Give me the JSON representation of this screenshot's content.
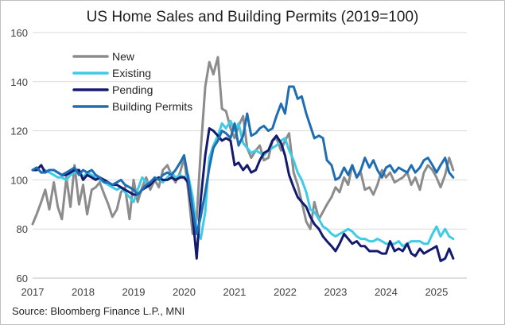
{
  "title": "US Home Sales and Building Permits (2019=100)",
  "source": "Source: Bloomberg Finance L.P., MNI",
  "chart_data": {
    "type": "line",
    "title": "US Home Sales and Building Permits (2019=100)",
    "xlabel": "",
    "ylabel": "",
    "xlim": [
      2017.0,
      2025.6
    ],
    "ylim": [
      60,
      160
    ],
    "yticks": [
      60,
      80,
      100,
      120,
      140,
      160
    ],
    "xticks": [
      "2017",
      "2018",
      "2019",
      "2020",
      "2021",
      "2022",
      "2023",
      "2024",
      "2025"
    ],
    "grid": true,
    "legend_position": "top-left",
    "series": [
      {
        "name": "New",
        "color": "#8c8c8c",
        "x": [
          2017.0,
          2017.08,
          2017.17,
          2017.25,
          2017.33,
          2017.42,
          2017.5,
          2017.58,
          2017.67,
          2017.75,
          2017.83,
          2017.92,
          2018.0,
          2018.08,
          2018.17,
          2018.25,
          2018.33,
          2018.42,
          2018.5,
          2018.58,
          2018.67,
          2018.75,
          2018.83,
          2018.92,
          2019.0,
          2019.08,
          2019.17,
          2019.25,
          2019.33,
          2019.42,
          2019.5,
          2019.58,
          2019.67,
          2019.75,
          2019.83,
          2019.92,
          2020.0,
          2020.08,
          2020.17,
          2020.25,
          2020.33,
          2020.42,
          2020.5,
          2020.58,
          2020.67,
          2020.75,
          2020.83,
          2020.92,
          2021.0,
          2021.08,
          2021.17,
          2021.25,
          2021.33,
          2021.42,
          2021.5,
          2021.58,
          2021.67,
          2021.75,
          2021.83,
          2021.92,
          2022.0,
          2022.08,
          2022.17,
          2022.25,
          2022.33,
          2022.42,
          2022.5,
          2022.58,
          2022.67,
          2022.75,
          2022.83,
          2022.92,
          2023.0,
          2023.08,
          2023.17,
          2023.25,
          2023.33,
          2023.42,
          2023.5,
          2023.58,
          2023.67,
          2023.75,
          2023.83,
          2023.92,
          2024.0,
          2024.08,
          2024.17,
          2024.25,
          2024.33,
          2024.42,
          2024.5,
          2024.58,
          2024.67,
          2024.75,
          2024.83,
          2024.92,
          2025.0,
          2025.08,
          2025.17,
          2025.25,
          2025.33
        ],
        "values": [
          82,
          86,
          91,
          96,
          88,
          99,
          89,
          84,
          101,
          89,
          106,
          90,
          98,
          86,
          96,
          97,
          99,
          94,
          90,
          85,
          88,
          95,
          97,
          84,
          100,
          91,
          97,
          101,
          96,
          100,
          97,
          104,
          106,
          102,
          99,
          103,
          109,
          96,
          78,
          84,
          112,
          138,
          148,
          143,
          150,
          129,
          128,
          121,
          117,
          122,
          126,
          113,
          109,
          112,
          114,
          108,
          109,
          116,
          117,
          112,
          116,
          119,
          103,
          98,
          91,
          83,
          80,
          91,
          84,
          87,
          90,
          93,
          97,
          95,
          101,
          98,
          106,
          101,
          103,
          96,
          97,
          94,
          98,
          104,
          101,
          103,
          99,
          100,
          101,
          103,
          98,
          101,
          96,
          103,
          106,
          104,
          101,
          97,
          102,
          109,
          104
        ],
        "color_line": "#8c8c8c"
      },
      {
        "name": "Existing",
        "color": "#3fcbe6",
        "x": [
          2017.0,
          2017.08,
          2017.17,
          2017.25,
          2017.33,
          2017.42,
          2017.5,
          2017.58,
          2017.67,
          2017.75,
          2017.83,
          2017.92,
          2018.0,
          2018.08,
          2018.17,
          2018.25,
          2018.33,
          2018.42,
          2018.5,
          2018.58,
          2018.67,
          2018.75,
          2018.83,
          2018.92,
          2019.0,
          2019.08,
          2019.17,
          2019.25,
          2019.33,
          2019.42,
          2019.5,
          2019.58,
          2019.67,
          2019.75,
          2019.83,
          2019.92,
          2020.0,
          2020.08,
          2020.17,
          2020.25,
          2020.33,
          2020.42,
          2020.5,
          2020.58,
          2020.67,
          2020.75,
          2020.83,
          2020.92,
          2021.0,
          2021.08,
          2021.17,
          2021.25,
          2021.33,
          2021.42,
          2021.5,
          2021.58,
          2021.67,
          2021.75,
          2021.83,
          2021.92,
          2022.0,
          2022.08,
          2022.17,
          2022.25,
          2022.33,
          2022.42,
          2022.5,
          2022.58,
          2022.67,
          2022.75,
          2022.83,
          2022.92,
          2023.0,
          2023.08,
          2023.17,
          2023.25,
          2023.33,
          2023.42,
          2023.5,
          2023.58,
          2023.67,
          2023.75,
          2023.83,
          2023.92,
          2024.0,
          2024.08,
          2024.17,
          2024.25,
          2024.33,
          2024.42,
          2024.5,
          2024.58,
          2024.67,
          2024.75,
          2024.83,
          2024.92,
          2025.0,
          2025.08,
          2025.17,
          2025.25,
          2025.33
        ],
        "values": [
          104,
          105,
          103,
          104,
          103,
          102,
          101,
          101,
          100,
          102,
          103,
          104,
          101,
          103,
          102,
          101,
          100,
          99,
          98,
          97,
          96,
          97,
          95,
          93,
          91,
          96,
          101,
          99,
          99,
          100,
          101,
          99,
          101,
          103,
          101,
          102,
          101,
          102,
          93,
          80,
          76,
          87,
          109,
          114,
          118,
          123,
          121,
          124,
          120,
          123,
          115,
          113,
          111,
          112,
          111,
          110,
          112,
          113,
          114,
          116,
          117,
          112,
          108,
          103,
          100,
          95,
          88,
          87,
          84,
          81,
          80,
          78,
          77,
          78,
          79,
          80,
          79,
          77,
          76,
          76,
          75,
          75,
          76,
          75,
          74,
          74,
          74,
          75,
          73,
          74,
          75,
          75,
          75,
          74,
          74,
          78,
          81,
          77,
          80,
          77,
          76
        ]
      },
      {
        "name": "Pending",
        "color": "#141a6e",
        "x": [
          2017.0,
          2017.08,
          2017.17,
          2017.25,
          2017.33,
          2017.42,
          2017.5,
          2017.58,
          2017.67,
          2017.75,
          2017.83,
          2017.92,
          2018.0,
          2018.08,
          2018.17,
          2018.25,
          2018.33,
          2018.42,
          2018.5,
          2018.58,
          2018.67,
          2018.75,
          2018.83,
          2018.92,
          2019.0,
          2019.08,
          2019.17,
          2019.25,
          2019.33,
          2019.42,
          2019.5,
          2019.58,
          2019.67,
          2019.75,
          2019.83,
          2019.92,
          2020.0,
          2020.08,
          2020.17,
          2020.25,
          2020.33,
          2020.42,
          2020.5,
          2020.58,
          2020.67,
          2020.75,
          2020.83,
          2020.92,
          2021.0,
          2021.08,
          2021.17,
          2021.25,
          2021.33,
          2021.42,
          2021.5,
          2021.58,
          2021.67,
          2021.75,
          2021.83,
          2021.92,
          2022.0,
          2022.08,
          2022.17,
          2022.25,
          2022.33,
          2022.42,
          2022.5,
          2022.58,
          2022.67,
          2022.75,
          2022.83,
          2022.92,
          2023.0,
          2023.08,
          2023.17,
          2023.25,
          2023.33,
          2023.42,
          2023.5,
          2023.58,
          2023.67,
          2023.75,
          2023.83,
          2023.92,
          2024.0,
          2024.08,
          2024.17,
          2024.25,
          2024.33,
          2024.42,
          2024.5,
          2024.58,
          2024.67,
          2024.75,
          2024.83,
          2024.92,
          2025.0,
          2025.08,
          2025.17,
          2025.25,
          2025.33
        ],
        "values": [
          104,
          104,
          106,
          103,
          104,
          104,
          103,
          102,
          102,
          103,
          104,
          104,
          100,
          102,
          101,
          100,
          101,
          100,
          99,
          98,
          98,
          97,
          96,
          95,
          94,
          94,
          96,
          97,
          98,
          100,
          101,
          100,
          100,
          101,
          100,
          101,
          101,
          99,
          85,
          68,
          92,
          110,
          121,
          120,
          118,
          116,
          117,
          116,
          106,
          107,
          104,
          106,
          103,
          104,
          108,
          111,
          112,
          116,
          118,
          115,
          110,
          102,
          97,
          93,
          91,
          89,
          85,
          82,
          80,
          77,
          75,
          73,
          71,
          74,
          78,
          76,
          74,
          75,
          73,
          73,
          71,
          71,
          71,
          70,
          70,
          75,
          71,
          72,
          71,
          74,
          70,
          69,
          72,
          70,
          71,
          72,
          73,
          67,
          68,
          72,
          68
        ]
      },
      {
        "name": "Building Permits",
        "color": "#1f6db3",
        "x": [
          2017.0,
          2017.08,
          2017.17,
          2017.25,
          2017.33,
          2017.42,
          2017.5,
          2017.58,
          2017.67,
          2017.75,
          2017.83,
          2017.92,
          2018.0,
          2018.08,
          2018.17,
          2018.25,
          2018.33,
          2018.42,
          2018.5,
          2018.58,
          2018.67,
          2018.75,
          2018.83,
          2018.92,
          2019.0,
          2019.08,
          2019.17,
          2019.25,
          2019.33,
          2019.42,
          2019.5,
          2019.58,
          2019.67,
          2019.75,
          2019.83,
          2019.92,
          2020.0,
          2020.08,
          2020.17,
          2020.25,
          2020.33,
          2020.42,
          2020.5,
          2020.58,
          2020.67,
          2020.75,
          2020.83,
          2020.92,
          2021.0,
          2021.08,
          2021.17,
          2021.25,
          2021.33,
          2021.42,
          2021.5,
          2021.58,
          2021.67,
          2021.75,
          2021.83,
          2021.92,
          2022.0,
          2022.08,
          2022.17,
          2022.25,
          2022.33,
          2022.42,
          2022.5,
          2022.58,
          2022.67,
          2022.75,
          2022.83,
          2022.92,
          2023.0,
          2023.08,
          2023.17,
          2023.25,
          2023.33,
          2023.42,
          2023.5,
          2023.58,
          2023.67,
          2023.75,
          2023.83,
          2023.92,
          2024.0,
          2024.08,
          2024.17,
          2024.25,
          2024.33,
          2024.42,
          2024.5,
          2024.58,
          2024.67,
          2024.75,
          2024.83,
          2024.92,
          2025.0,
          2025.08,
          2025.17,
          2025.25,
          2025.33
        ],
        "values": [
          104,
          105,
          103,
          103,
          104,
          104,
          103,
          102,
          103,
          104,
          105,
          102,
          104,
          103,
          104,
          102,
          101,
          99,
          99,
          98,
          99,
          100,
          98,
          97,
          96,
          94,
          96,
          98,
          99,
          101,
          100,
          102,
          103,
          102,
          104,
          107,
          110,
          101,
          88,
          78,
          85,
          95,
          105,
          113,
          116,
          120,
          119,
          117,
          123,
          114,
          118,
          127,
          118,
          119,
          121,
          122,
          120,
          121,
          126,
          131,
          127,
          138,
          138,
          133,
          134,
          127,
          122,
          117,
          118,
          117,
          108,
          106,
          100,
          101,
          105,
          102,
          106,
          101,
          104,
          109,
          105,
          108,
          104,
          101,
          105,
          106,
          103,
          105,
          104,
          103,
          106,
          103,
          105,
          108,
          109,
          106,
          103,
          106,
          109,
          103,
          101
        ]
      }
    ]
  }
}
